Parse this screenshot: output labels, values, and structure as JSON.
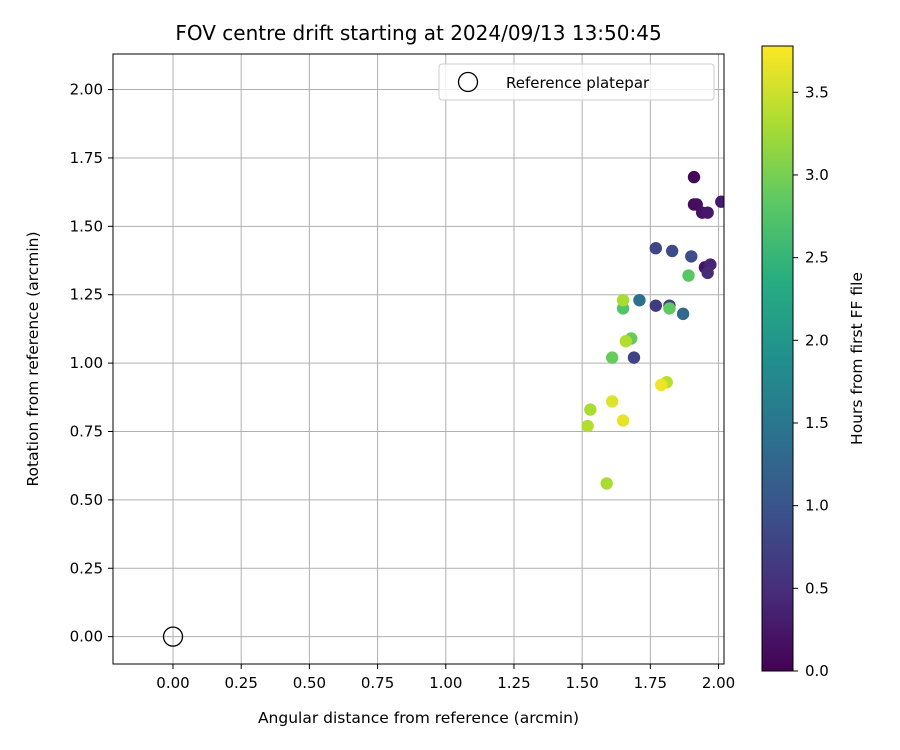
{
  "chart_data": {
    "type": "scatter",
    "title": "FOV centre drift starting at 2024/09/13 13:50:45",
    "xlabel": "Angular distance from reference (arcmin)",
    "ylabel": "Rotation from reference (arcmin)",
    "xlim": [
      -0.22,
      2.02
    ],
    "ylim": [
      -0.1,
      2.13
    ],
    "xticks": [
      0.0,
      0.25,
      0.5,
      0.75,
      1.0,
      1.25,
      1.5,
      1.75,
      2.0
    ],
    "xtick_labels": [
      "0.00",
      "0.25",
      "0.50",
      "0.75",
      "1.00",
      "1.25",
      "1.50",
      "1.75",
      "2.00"
    ],
    "yticks": [
      0.0,
      0.25,
      0.5,
      0.75,
      1.0,
      1.25,
      1.5,
      1.75,
      2.0
    ],
    "ytick_labels": [
      "0.00",
      "0.25",
      "0.50",
      "0.75",
      "1.00",
      "1.25",
      "1.50",
      "1.75",
      "2.00"
    ],
    "grid": true,
    "legend": {
      "placement": "top-right",
      "entries": [
        "Reference platepar"
      ]
    },
    "reference_point": {
      "x": 0.0,
      "y": 0.0,
      "marker": "open-circle"
    },
    "colormap": "viridis",
    "colorbar": {
      "label": "Hours from first FF file",
      "range": [
        0.0,
        3.78
      ],
      "ticks": [
        0.0,
        0.5,
        1.0,
        1.5,
        2.0,
        2.5,
        3.0,
        3.5
      ],
      "tick_labels": [
        "0.0",
        "0.5",
        "1.0",
        "1.5",
        "2.0",
        "2.5",
        "3.0",
        "3.5"
      ]
    },
    "points": [
      {
        "x": 1.91,
        "y": 1.68,
        "c": 0.05
      },
      {
        "x": 1.91,
        "y": 1.58,
        "c": 0.1
      },
      {
        "x": 1.92,
        "y": 1.58,
        "c": 0.15
      },
      {
        "x": 1.94,
        "y": 1.55,
        "c": 0.2
      },
      {
        "x": 1.96,
        "y": 1.55,
        "c": 0.25
      },
      {
        "x": 2.01,
        "y": 1.59,
        "c": 0.3
      },
      {
        "x": 1.95,
        "y": 1.35,
        "c": 0.2
      },
      {
        "x": 1.97,
        "y": 1.36,
        "c": 0.4
      },
      {
        "x": 1.96,
        "y": 1.33,
        "c": 0.45
      },
      {
        "x": 1.77,
        "y": 1.42,
        "c": 0.8
      },
      {
        "x": 1.83,
        "y": 1.41,
        "c": 0.85
      },
      {
        "x": 1.9,
        "y": 1.39,
        "c": 0.9
      },
      {
        "x": 1.77,
        "y": 1.21,
        "c": 0.65
      },
      {
        "x": 1.82,
        "y": 1.21,
        "c": 0.7
      },
      {
        "x": 1.69,
        "y": 1.02,
        "c": 0.75
      },
      {
        "x": 1.71,
        "y": 1.23,
        "c": 1.4
      },
      {
        "x": 1.87,
        "y": 1.18,
        "c": 1.3
      },
      {
        "x": 1.89,
        "y": 1.32,
        "c": 2.8
      },
      {
        "x": 1.82,
        "y": 1.2,
        "c": 2.85
      },
      {
        "x": 1.65,
        "y": 1.2,
        "c": 2.75
      },
      {
        "x": 1.68,
        "y": 1.09,
        "c": 2.9
      },
      {
        "x": 1.61,
        "y": 1.02,
        "c": 2.9
      },
      {
        "x": 1.65,
        "y": 1.23,
        "c": 3.3
      },
      {
        "x": 1.66,
        "y": 1.08,
        "c": 3.35
      },
      {
        "x": 1.81,
        "y": 0.93,
        "c": 3.4
      },
      {
        "x": 1.79,
        "y": 0.92,
        "c": 3.7
      },
      {
        "x": 1.61,
        "y": 0.86,
        "c": 3.6
      },
      {
        "x": 1.53,
        "y": 0.83,
        "c": 3.3
      },
      {
        "x": 1.52,
        "y": 0.77,
        "c": 3.35
      },
      {
        "x": 1.65,
        "y": 0.79,
        "c": 3.65
      },
      {
        "x": 1.59,
        "y": 0.56,
        "c": 3.3
      }
    ]
  }
}
